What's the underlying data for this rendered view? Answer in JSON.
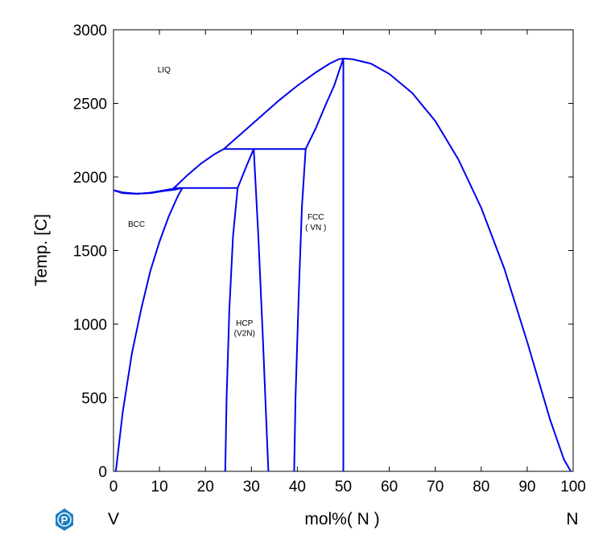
{
  "chart_data": {
    "type": "line",
    "title": "",
    "xlabel": "mol%( N )",
    "ylabel": "Temp. [C]",
    "xlim": [
      0,
      100
    ],
    "ylim": [
      0,
      3000
    ],
    "x_ticks": [
      0,
      10,
      20,
      30,
      40,
      50,
      60,
      70,
      80,
      90,
      100
    ],
    "y_ticks": [
      0,
      500,
      1000,
      1500,
      2000,
      2500,
      3000
    ],
    "x_end_labels": {
      "left": "V",
      "right": "N"
    },
    "line_color": "#0000ee",
    "grid": false,
    "phase_labels": [
      {
        "text": "LIQ",
        "x": 11,
        "y": 2710
      },
      {
        "text": "BCC",
        "x": 5,
        "y": 1660
      },
      {
        "text": "HCP",
        "x": 28.5,
        "y": 990
      },
      {
        "text": "(V2N)",
        "x": 28.5,
        "y": 920
      },
      {
        "text": "FCC",
        "x": 44,
        "y": 1710
      },
      {
        "text": "( VN )",
        "x": 44,
        "y": 1640
      }
    ],
    "series": [
      {
        "id": "liquidus-left",
        "x": [
          0,
          2,
          5,
          8,
          13
        ],
        "y": [
          1910,
          1890,
          1885,
          1893,
          1920
        ]
      },
      {
        "id": "bcc-solidus",
        "x": [
          0,
          2,
          5,
          8,
          11,
          13,
          15
        ],
        "y": [
          1910,
          1895,
          1887,
          1890,
          1905,
          1912,
          1925
        ]
      },
      {
        "id": "bcc-solvus",
        "x": [
          0.5,
          2,
          4,
          6,
          8,
          10,
          12,
          14,
          15
        ],
        "y": [
          0,
          400,
          800,
          1100,
          1360,
          1560,
          1730,
          1870,
          1925
        ]
      },
      {
        "id": "eutectic-bcc-hcp",
        "x": [
          13,
          27
        ],
        "y": [
          1925,
          1925
        ]
      },
      {
        "id": "liquidus-mid",
        "x": [
          13,
          16,
          19,
          22,
          24
        ],
        "y": [
          1920,
          2010,
          2090,
          2155,
          2190
        ]
      },
      {
        "id": "liquidus-main",
        "x": [
          24,
          28,
          32,
          36,
          40,
          44,
          47,
          49,
          50,
          52,
          56,
          60,
          65,
          70,
          75,
          80,
          85,
          90,
          95,
          98,
          99.5
        ],
        "y": [
          2190,
          2300,
          2410,
          2520,
          2620,
          2710,
          2770,
          2800,
          2805,
          2800,
          2770,
          2700,
          2570,
          2380,
          2120,
          1790,
          1380,
          880,
          350,
          80,
          0
        ]
      },
      {
        "id": "peritectic-hcp",
        "x": [
          24,
          42
        ],
        "y": [
          2190,
          2190
        ]
      },
      {
        "id": "hcp-left",
        "x": [
          24.3,
          24.6,
          25.2,
          26,
          27
        ],
        "y": [
          0,
          500,
          1100,
          1600,
          1925
        ]
      },
      {
        "id": "hcp-upper-left",
        "x": [
          27,
          29,
          30.5
        ],
        "y": [
          1925,
          2080,
          2190
        ]
      },
      {
        "id": "hcp-right",
        "x": [
          30.5,
          31.5,
          32.5,
          33.3,
          33.7
        ],
        "y": [
          2190,
          1600,
          900,
          300,
          0
        ]
      },
      {
        "id": "fcc-left",
        "x": [
          39.3,
          39.6,
          40.3,
          41,
          41.8
        ],
        "y": [
          0,
          500,
          1200,
          1800,
          2190
        ]
      },
      {
        "id": "fcc-liquidus",
        "x": [
          41.8,
          44,
          46,
          48,
          50
        ],
        "y": [
          2190,
          2330,
          2480,
          2620,
          2805
        ]
      },
      {
        "id": "fcc-right",
        "x": [
          50,
          50,
          50
        ],
        "y": [
          2805,
          1400,
          0
        ]
      }
    ]
  },
  "footer": {
    "logo_icon": "p-logo-icon",
    "logo_color": "#1a7fc1"
  }
}
